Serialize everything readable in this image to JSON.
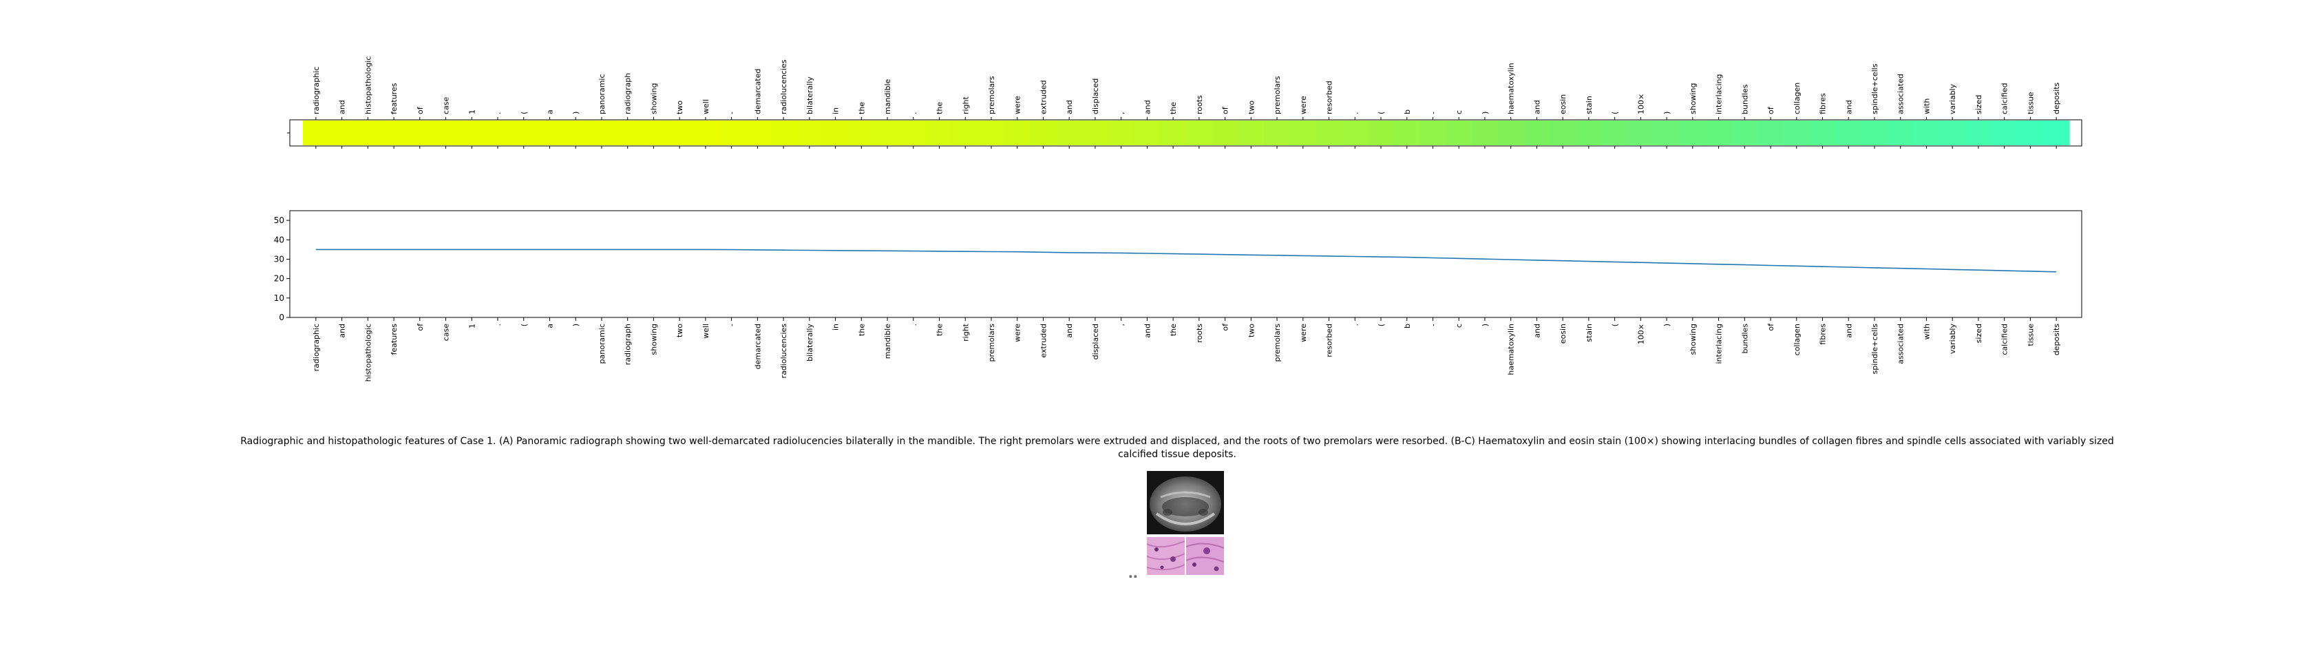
{
  "figure_caption": "Radiographic and histopathologic features of Case 1. (A) Panoramic radiograph showing two well-demarcated radiolucencies bilaterally in the mandible. The right premolars were extruded and displaced, and the roots of two premolars were resorbed. (B-C) Haematoxylin and eosin stain (100×) showing interlacing bundles of collagen fibres and spindle cells associated with variably sized calcified tissue deposits.",
  "chart_data": [
    {
      "type": "heatmap",
      "colormap": "yellow-to-aquamarine",
      "tokens": [
        "radiographic",
        "and",
        "histopathologic",
        "features",
        "of",
        "case",
        "1",
        ".",
        "(",
        "a",
        ")",
        "panoramic",
        "radiograph",
        "showing",
        "two",
        "well",
        "-",
        "demarcated",
        "radiolucencies",
        "bilaterally",
        "in",
        "the",
        "mandible",
        ".",
        "the",
        "right",
        "premolars",
        "were",
        "extruded",
        "and",
        "displaced",
        ",",
        "and",
        "the",
        "roots",
        "of",
        "two",
        "premolars",
        "were",
        "resorbed",
        ".",
        "(",
        "b",
        "-",
        "c",
        ")",
        "haematoxylin",
        "and",
        "eosin",
        "stain",
        "(",
        "100×",
        ")",
        "showing",
        "interlacing",
        "bundles",
        "of",
        "collagen",
        "fibres",
        "and",
        "spindle+cells",
        "associated",
        "with",
        "variably",
        "sized",
        "calcified",
        "tissue",
        "deposits"
      ],
      "values": [
        35,
        35,
        35,
        35,
        35,
        35,
        35,
        35,
        35,
        35,
        35,
        35,
        35,
        35,
        35,
        35,
        34.9,
        34.8,
        34.7,
        34.6,
        34.5,
        34.4,
        34.3,
        34.2,
        34.1,
        34.0,
        33.9,
        33.8,
        33.6,
        33.4,
        33.3,
        33.2,
        33.0,
        32.8,
        32.6,
        32.4,
        32.2,
        32.0,
        31.8,
        31.6,
        31.4,
        31.2,
        31.0,
        30.7,
        30.4,
        30.1,
        29.8,
        29.5,
        29.2,
        28.9,
        28.6,
        28.3,
        28.0,
        27.7,
        27.4,
        27.1,
        26.8,
        26.5,
        26.2,
        25.9,
        25.6,
        25.3,
        25.0,
        24.7,
        24.4,
        24.1,
        23.8,
        23.5
      ],
      "grid": false
    },
    {
      "type": "line",
      "x": [
        "radiographic",
        "and",
        "histopathologic",
        "features",
        "of",
        "case",
        "1",
        ".",
        "(",
        "a",
        ")",
        "panoramic",
        "radiograph",
        "showing",
        "two",
        "well",
        "-",
        "demarcated",
        "radiolucencies",
        "bilaterally",
        "in",
        "the",
        "mandible",
        ".",
        "the",
        "right",
        "premolars",
        "were",
        "extruded",
        "and",
        "displaced",
        ",",
        "and",
        "the",
        "roots",
        "of",
        "two",
        "premolars",
        "were",
        "resorbed",
        ".",
        "(",
        "b",
        "-",
        "c",
        ")",
        "haematoxylin",
        "and",
        "eosin",
        "stain",
        "(",
        "100×",
        ")",
        "showing",
        "interlacing",
        "bundles",
        "of",
        "collagen",
        "fibres",
        "and",
        "spindle+cells",
        "associated",
        "with",
        "variably",
        "sized",
        "calcified",
        "tissue",
        "deposits"
      ],
      "series": [
        {
          "color": "#1f77b4",
          "values": [
            35,
            35,
            35,
            35,
            35,
            35,
            35,
            35,
            35,
            35,
            35,
            35,
            35,
            35,
            35,
            35,
            34.9,
            34.8,
            34.7,
            34.6,
            34.5,
            34.4,
            34.3,
            34.2,
            34.1,
            34.0,
            33.9,
            33.8,
            33.6,
            33.4,
            33.3,
            33.2,
            33.0,
            32.8,
            32.6,
            32.4,
            32.2,
            32.0,
            31.8,
            31.6,
            31.4,
            31.2,
            31.0,
            30.7,
            30.4,
            30.1,
            29.8,
            29.5,
            29.2,
            28.9,
            28.6,
            28.3,
            28.0,
            27.7,
            27.4,
            27.1,
            26.8,
            26.5,
            26.2,
            25.9,
            25.6,
            25.3,
            25.0,
            24.7,
            24.4,
            24.1,
            23.8,
            23.5
          ]
        }
      ],
      "yticks": [
        0,
        10,
        20,
        30,
        40,
        50
      ],
      "ylim": [
        0,
        55
      ],
      "grid": false
    }
  ]
}
